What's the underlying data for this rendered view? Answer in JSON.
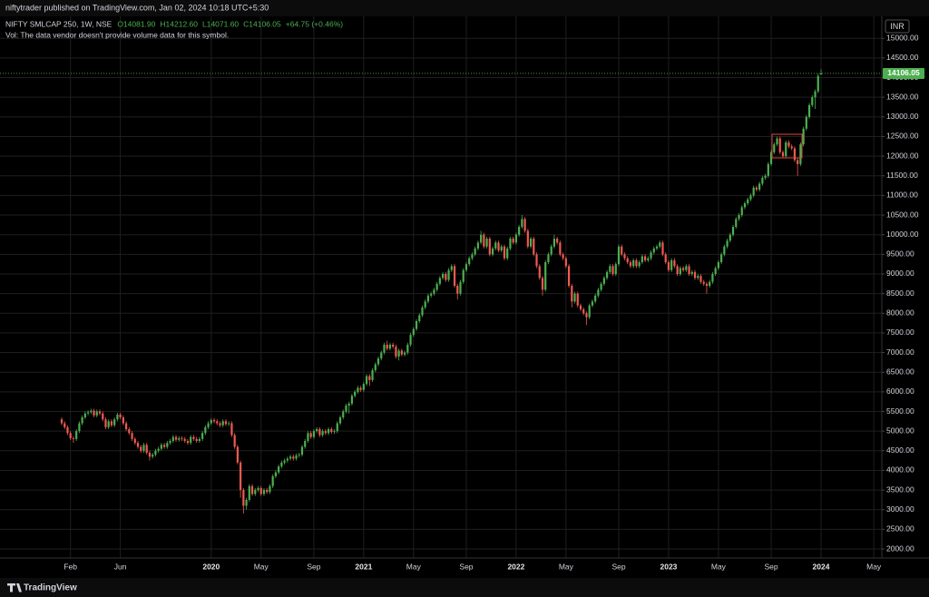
{
  "chart_data": {
    "type": "candlestick",
    "publisher": "niftytrader published on TradingView.com, Jan 02, 2024 10:18 UTC+5:30",
    "symbol": "NIFTY SMLCAP 250, 1W, NSE",
    "legend": {
      "open": "O14081.90",
      "high": "H14212.60",
      "low": "L14071.60",
      "close": "C14106.05",
      "change": "+64.75 (+0.46%)"
    },
    "volume_note": "Vol: The data vendor doesn't provide volume data for this symbol.",
    "currency": "INR",
    "last_price_label": "14106.05",
    "brand": "TradingView",
    "up_color": "#4caf50",
    "down_color": "#f05a50",
    "grid": true,
    "ylim": [
      1770,
      15560
    ],
    "yticks": [
      {
        "value": 2000,
        "label": "2000.00"
      },
      {
        "value": 2500,
        "label": "2500.00"
      },
      {
        "value": 3000,
        "label": "3000.00"
      },
      {
        "value": 3500,
        "label": "3500.00"
      },
      {
        "value": 4000,
        "label": "4000.00"
      },
      {
        "value": 4500,
        "label": "4500.00"
      },
      {
        "value": 5000,
        "label": "5000.00"
      },
      {
        "value": 5500,
        "label": "5500.00"
      },
      {
        "value": 6000,
        "label": "6000.00"
      },
      {
        "value": 6500,
        "label": "6500.00"
      },
      {
        "value": 7000,
        "label": "7000.00"
      },
      {
        "value": 7500,
        "label": "7500.00"
      },
      {
        "value": 8000,
        "label": "8000.00"
      },
      {
        "value": 8500,
        "label": "8500.00"
      },
      {
        "value": 9000,
        "label": "9000.00"
      },
      {
        "value": 9500,
        "label": "9500.00"
      },
      {
        "value": 10000,
        "label": "10000.00"
      },
      {
        "value": 10500,
        "label": "10500.00"
      },
      {
        "value": 11000,
        "label": "11000.00"
      },
      {
        "value": 11500,
        "label": "11500.00"
      },
      {
        "value": 12000,
        "label": "12000.00"
      },
      {
        "value": 12500,
        "label": "12500.00"
      },
      {
        "value": 13000,
        "label": "13000.00"
      },
      {
        "value": 13500,
        "label": "13500.00"
      },
      {
        "value": 14000,
        "label": "14000.00"
      },
      {
        "value": 14500,
        "label": "14500.00"
      },
      {
        "value": 15000,
        "label": "15000.00"
      }
    ],
    "categories": [
      null,
      null,
      null,
      "Feb",
      null,
      null,
      null,
      null,
      null,
      null,
      null,
      null,
      null,
      null,
      null,
      null,
      null,
      null,
      null,
      null,
      "Jun",
      null,
      null,
      null,
      null,
      null,
      null,
      null,
      null,
      null,
      null,
      null,
      null,
      null,
      null,
      null,
      null,
      null,
      null,
      null,
      null,
      null,
      null,
      null,
      null,
      null,
      null,
      null,
      null,
      null,
      null,
      "2020",
      null,
      null,
      null,
      null,
      null,
      null,
      null,
      null,
      null,
      null,
      null,
      null,
      null,
      null,
      null,
      null,
      "May",
      null,
      null,
      null,
      null,
      null,
      null,
      null,
      null,
      null,
      null,
      null,
      null,
      null,
      null,
      null,
      null,
      null,
      "Sep",
      null,
      null,
      null,
      null,
      null,
      null,
      null,
      null,
      null,
      null,
      null,
      null,
      null,
      null,
      null,
      null,
      "2021",
      null,
      null,
      null,
      null,
      null,
      null,
      null,
      null,
      null,
      null,
      null,
      null,
      null,
      null,
      null,
      null,
      "May",
      null,
      null,
      null,
      null,
      null,
      null,
      null,
      null,
      null,
      null,
      null,
      null,
      null,
      null,
      null,
      null,
      null,
      "Sep",
      null,
      null,
      null,
      null,
      null,
      null,
      null,
      null,
      null,
      null,
      null,
      null,
      null,
      null,
      null,
      null,
      "2022",
      null,
      null,
      null,
      null,
      null,
      null,
      null,
      null,
      null,
      null,
      null,
      null,
      null,
      null,
      null,
      null,
      "May",
      null,
      null,
      null,
      null,
      null,
      null,
      null,
      null,
      null,
      null,
      null,
      null,
      null,
      null,
      null,
      null,
      null,
      "Sep",
      null,
      null,
      null,
      null,
      null,
      null,
      null,
      null,
      null,
      null,
      null,
      null,
      null,
      null,
      null,
      null,
      "2023",
      null,
      null,
      null,
      null,
      null,
      null,
      null,
      null,
      null,
      null,
      null,
      null,
      null,
      null,
      null,
      null,
      "May",
      null,
      null,
      null,
      null,
      null,
      null,
      null,
      null,
      null,
      null,
      null,
      null,
      null,
      null,
      null,
      null,
      null,
      "Sep",
      null,
      null,
      null,
      null,
      null,
      null,
      null,
      null,
      null,
      null,
      null,
      null,
      null,
      null,
      null,
      null,
      "2024",
      null,
      null,
      null,
      null,
      null,
      null,
      null,
      null,
      null,
      null,
      null,
      null,
      null,
      null,
      null,
      null,
      null,
      "May",
      null,
      null,
      null
    ],
    "open": [
      5300,
      5200,
      5100,
      4950,
      4820,
      4800,
      5000,
      5200,
      5350,
      5450,
      5480,
      5520,
      5400,
      5500,
      5450,
      5300,
      5100,
      5250,
      5150,
      5300,
      5420,
      5350,
      5200,
      5050,
      4950,
      4800,
      4700,
      4600,
      4500,
      4650,
      4450,
      4350,
      4400,
      4500,
      4550,
      4650,
      4600,
      4700,
      4750,
      4850,
      4780,
      4820,
      4800,
      4750,
      4700,
      4850,
      4800,
      4750,
      4800,
      4950,
      5100,
      5200,
      5280,
      5250,
      5200,
      5150,
      5250,
      5180,
      5200,
      4900,
      4600,
      4200,
      3500,
      3100,
      3250,
      3600,
      3400,
      3500,
      3550,
      3400,
      3500,
      3450,
      3600,
      3850,
      3950,
      4100,
      4200,
      4250,
      4300,
      4350,
      4300,
      4380,
      4400,
      4600,
      4750,
      4950,
      4850,
      5000,
      5050,
      4900,
      5000,
      4950,
      5050,
      4980,
      5000,
      5200,
      5350,
      5500,
      5650,
      5700,
      5900,
      6000,
      6100,
      6050,
      6200,
      6400,
      6300,
      6550,
      6700,
      6850,
      7000,
      7200,
      7100,
      7200,
      7150,
      6900,
      7050,
      6950,
      7000,
      7200,
      7450,
      7600,
      7800,
      7950,
      8150,
      8300,
      8450,
      8500,
      8600,
      8750,
      8900,
      9000,
      8850,
      9100,
      9200,
      8700,
      8500,
      8800,
      9100,
      9250,
      9400,
      9500,
      9650,
      9800,
      10000,
      9700,
      9900,
      9500,
      9650,
      9800,
      9600,
      9700,
      9400,
      9650,
      9900,
      9800,
      10000,
      10200,
      10400,
      10100,
      9700,
      9900,
      9500,
      9200,
      8900,
      8600,
      9300,
      9500,
      9700,
      9900,
      9800,
      9500,
      9400,
      9200,
      8700,
      8300,
      8500,
      8200,
      8100,
      8000,
      7900,
      8200,
      8300,
      8450,
      8600,
      8750,
      8900,
      9050,
      9200,
      9000,
      9250,
      9700,
      9500,
      9400,
      9300,
      9200,
      9350,
      9200,
      9300,
      9450,
      9350,
      9400,
      9550,
      9650,
      9700,
      9800,
      9500,
      9300,
      9100,
      9350,
      9200,
      9000,
      9150,
      9100,
      9200,
      9000,
      9050,
      8900,
      8950,
      8800,
      8750,
      8700,
      8800,
      9000,
      9150,
      9300,
      9500,
      9700,
      9850,
      10000,
      10200,
      10400,
      10500,
      10700,
      10800,
      10900,
      11000,
      11200,
      11150,
      11300,
      11450,
      11500,
      11800,
      12100,
      12300,
      12450,
      12100,
      12000,
      12350,
      12250,
      12200,
      11900,
      11800,
      12300,
      12700,
      13000,
      13300,
      13500,
      13650,
      14081.9,
      null,
      null,
      null,
      null,
      null,
      null,
      null,
      null,
      null,
      null,
      null,
      null,
      null,
      null,
      null,
      null,
      null,
      null,
      null,
      null,
      null
    ],
    "high": [
      5350,
      5250,
      5150,
      5000,
      4870,
      5050,
      5250,
      5400,
      5500,
      5530,
      5570,
      5570,
      5550,
      5550,
      5500,
      5350,
      5300,
      5300,
      5350,
      5470,
      5470,
      5400,
      5250,
      5100,
      5000,
      4850,
      4750,
      4650,
      4700,
      4700,
      4500,
      4450,
      4550,
      4600,
      4700,
      4700,
      4750,
      4800,
      4900,
      4900,
      4870,
      4870,
      4850,
      4800,
      4900,
      4900,
      4850,
      4850,
      5000,
      5150,
      5250,
      5330,
      5330,
      5300,
      5250,
      5300,
      5300,
      5250,
      5250,
      4950,
      4650,
      4250,
      3550,
      3300,
      3650,
      3650,
      3550,
      3600,
      3600,
      3550,
      3550,
      3650,
      3900,
      4000,
      4150,
      4250,
      4300,
      4350,
      4400,
      4400,
      4430,
      4450,
      4650,
      4800,
      5000,
      5000,
      5050,
      5100,
      5100,
      5050,
      5050,
      5100,
      5100,
      5050,
      5250,
      5400,
      5550,
      5700,
      5750,
      5950,
      6050,
      6150,
      6150,
      6250,
      6450,
      6450,
      6600,
      6750,
      6900,
      7050,
      7250,
      7300,
      7250,
      7250,
      7200,
      7100,
      7100,
      7050,
      7250,
      7500,
      7650,
      7850,
      8000,
      8200,
      8350,
      8500,
      8550,
      8650,
      8800,
      8950,
      9050,
      9050,
      9150,
      9250,
      9250,
      8750,
      8850,
      9150,
      9300,
      9450,
      9550,
      9700,
      9850,
      10100,
      10050,
      9950,
      9950,
      9700,
      9850,
      9850,
      9750,
      9750,
      9700,
      9950,
      9950,
      10050,
      10250,
      10500,
      10450,
      10150,
      9950,
      9950,
      9550,
      9250,
      8950,
      9350,
      9550,
      9750,
      10000,
      9950,
      9850,
      9550,
      9450,
      9250,
      8750,
      8550,
      8550,
      8250,
      8150,
      8050,
      8250,
      8350,
      8500,
      8650,
      8800,
      8950,
      9100,
      9250,
      9250,
      9300,
      9750,
      9750,
      9550,
      9450,
      9350,
      9400,
      9400,
      9350,
      9500,
      9500,
      9450,
      9600,
      9700,
      9750,
      9850,
      9850,
      9550,
      9350,
      9400,
      9400,
      9250,
      9200,
      9200,
      9250,
      9250,
      9100,
      9100,
      9000,
      9000,
      8850,
      8800,
      8850,
      9050,
      9200,
      9350,
      9550,
      9750,
      9900,
      10050,
      10250,
      10450,
      10550,
      10750,
      10850,
      10950,
      11050,
      11250,
      11250,
      11350,
      11500,
      11550,
      11850,
      12150,
      12350,
      12500,
      12500,
      12150,
      12400,
      12400,
      12300,
      12250,
      11950,
      12350,
      12750,
      13050,
      13350,
      13550,
      13700,
      14100,
      14212.6,
      null,
      null,
      null,
      null,
      null,
      null,
      null,
      null,
      null,
      null,
      null,
      null,
      null,
      null,
      null,
      null,
      null,
      null,
      null,
      null,
      null
    ],
    "low": [
      5150,
      5050,
      4900,
      4770,
      4700,
      4750,
      4950,
      5150,
      5300,
      5400,
      5430,
      5350,
      5350,
      5400,
      5250,
      5050,
      5050,
      5100,
      5100,
      5250,
      5300,
      5150,
      5000,
      4900,
      4750,
      4650,
      4550,
      4450,
      4450,
      4400,
      4250,
      4300,
      4350,
      4450,
      4500,
      4550,
      4550,
      4650,
      4700,
      4730,
      4730,
      4750,
      4700,
      4650,
      4650,
      4750,
      4700,
      4700,
      4750,
      4900,
      5050,
      5150,
      5200,
      5150,
      5100,
      5100,
      5130,
      5130,
      4850,
      4550,
      4150,
      3300,
      2900,
      3000,
      3200,
      3350,
      3350,
      3450,
      3350,
      3350,
      3400,
      3400,
      3550,
      3800,
      3900,
      4050,
      4150,
      4200,
      4250,
      4250,
      4250,
      4330,
      4350,
      4550,
      4700,
      4800,
      4800,
      4950,
      4850,
      4850,
      4900,
      4900,
      4930,
      4930,
      4950,
      5150,
      5300,
      5450,
      5450,
      5650,
      5850,
      5950,
      6000,
      6000,
      6150,
      6150,
      6250,
      6500,
      6650,
      6800,
      6950,
      7050,
      7050,
      7100,
      6850,
      6800,
      6900,
      6900,
      6950,
      7150,
      7400,
      7550,
      7750,
      7900,
      8100,
      8250,
      8400,
      8450,
      8550,
      8700,
      8850,
      8800,
      8800,
      9050,
      8650,
      8350,
      8450,
      8750,
      9050,
      9200,
      9350,
      9450,
      9600,
      9750,
      9650,
      9650,
      9450,
      9450,
      9600,
      9550,
      9550,
      9350,
      9350,
      9600,
      9750,
      9750,
      9950,
      10150,
      10050,
      9650,
      9650,
      9450,
      9150,
      8850,
      8450,
      8550,
      9250,
      9450,
      9650,
      9750,
      9450,
      9350,
      9150,
      8650,
      8150,
      8250,
      8150,
      8050,
      7950,
      7700,
      7850,
      8150,
      8250,
      8400,
      8550,
      8700,
      8850,
      9000,
      8950,
      8950,
      9200,
      9450,
      9350,
      9250,
      9150,
      9150,
      9150,
      9150,
      9250,
      9300,
      9300,
      9350,
      9500,
      9600,
      9650,
      9450,
      9250,
      9050,
      9050,
      9150,
      8950,
      8950,
      9050,
      9050,
      8950,
      8950,
      8850,
      8850,
      8750,
      8700,
      8500,
      8650,
      8750,
      8950,
      9100,
      9250,
      9450,
      9650,
      9800,
      9950,
      10150,
      10350,
      10450,
      10650,
      10750,
      10850,
      10950,
      11100,
      11100,
      11250,
      11400,
      11450,
      11750,
      12050,
      12250,
      12050,
      11950,
      11950,
      12200,
      12150,
      11850,
      11500,
      11750,
      12250,
      12650,
      12950,
      13250,
      13200,
      13600,
      14071.6,
      null,
      null,
      null,
      null,
      null,
      null,
      null,
      null,
      null,
      null,
      null,
      null,
      null,
      null,
      null,
      null,
      null,
      null,
      null,
      null,
      null
    ],
    "close": [
      5200,
      5100,
      4950,
      4820,
      4800,
      5000,
      5200,
      5350,
      5450,
      5480,
      5520,
      5400,
      5500,
      5450,
      5300,
      5100,
      5250,
      5150,
      5300,
      5420,
      5350,
      5200,
      5050,
      4950,
      4800,
      4700,
      4600,
      4500,
      4650,
      4450,
      4350,
      4400,
      4500,
      4550,
      4650,
      4600,
      4700,
      4750,
      4850,
      4780,
      4820,
      4800,
      4750,
      4700,
      4850,
      4800,
      4750,
      4800,
      4950,
      5100,
      5200,
      5280,
      5250,
      5200,
      5150,
      5250,
      5180,
      5200,
      4900,
      4600,
      4200,
      3500,
      3100,
      3250,
      3600,
      3400,
      3500,
      3550,
      3400,
      3500,
      3450,
      3600,
      3850,
      3950,
      4100,
      4200,
      4250,
      4300,
      4350,
      4300,
      4380,
      4400,
      4600,
      4750,
      4950,
      4850,
      5000,
      5050,
      4900,
      5000,
      4950,
      5050,
      4980,
      5000,
      5200,
      5350,
      5500,
      5650,
      5700,
      5900,
      6000,
      6100,
      6050,
      6200,
      6400,
      6300,
      6550,
      6700,
      6850,
      7000,
      7200,
      7100,
      7200,
      7150,
      6900,
      7050,
      6950,
      7000,
      7200,
      7450,
      7600,
      7800,
      7950,
      8150,
      8300,
      8450,
      8500,
      8600,
      8750,
      8900,
      9000,
      8850,
      9100,
      9200,
      8700,
      8500,
      8800,
      9100,
      9250,
      9400,
      9500,
      9650,
      9800,
      10000,
      9700,
      9900,
      9500,
      9650,
      9800,
      9600,
      9700,
      9400,
      9650,
      9900,
      9800,
      10000,
      10200,
      10400,
      10100,
      9700,
      9900,
      9500,
      9200,
      8900,
      8600,
      9300,
      9500,
      9700,
      9900,
      9800,
      9500,
      9400,
      9200,
      8700,
      8300,
      8500,
      8200,
      8100,
      8000,
      7900,
      8200,
      8300,
      8450,
      8600,
      8750,
      8900,
      9050,
      9200,
      9000,
      9250,
      9700,
      9500,
      9400,
      9300,
      9200,
      9350,
      9200,
      9300,
      9450,
      9350,
      9400,
      9550,
      9650,
      9700,
      9800,
      9500,
      9300,
      9100,
      9350,
      9200,
      9000,
      9150,
      9100,
      9200,
      9000,
      9050,
      8900,
      8950,
      8800,
      8750,
      8700,
      8800,
      9000,
      9150,
      9300,
      9500,
      9700,
      9850,
      10000,
      10200,
      10400,
      10500,
      10700,
      10800,
      10900,
      11000,
      11200,
      11150,
      11300,
      11450,
      11500,
      11800,
      12100,
      12300,
      12450,
      12100,
      12000,
      12350,
      12250,
      12200,
      11900,
      11800,
      12300,
      12700,
      13000,
      13300,
      13500,
      13650,
      14041.3,
      14106.05,
      null,
      null,
      null,
      null,
      null,
      null,
      null,
      null,
      null,
      null,
      null,
      null,
      null,
      null,
      null,
      null,
      null,
      null,
      null,
      null,
      null
    ]
  }
}
